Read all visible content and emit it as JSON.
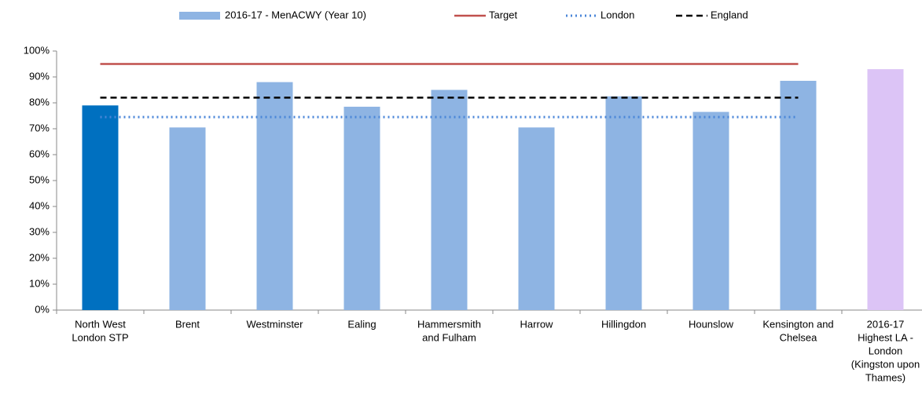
{
  "chart_data": {
    "type": "bar",
    "categories": [
      [
        "North West",
        "London STP"
      ],
      [
        "Brent"
      ],
      [
        "Westminster"
      ],
      [
        "Ealing"
      ],
      [
        "Hammersmith",
        "and Fulham"
      ],
      [
        "Harrow"
      ],
      [
        "Hillingdon"
      ],
      [
        "Hounslow"
      ],
      [
        "Kensington and",
        "Chelsea"
      ],
      [
        "2016-17",
        "Highest LA -",
        "London",
        "(Kingston upon",
        "Thames)"
      ]
    ],
    "series": [
      {
        "name": "2016-17 - MenACWY (Year 10)",
        "type": "bar",
        "color": "#8eb4e3",
        "colors": [
          "#0070c0",
          "#8eb4e3",
          "#8eb4e3",
          "#8eb4e3",
          "#8eb4e3",
          "#8eb4e3",
          "#8eb4e3",
          "#8eb4e3",
          "#8eb4e3",
          "#dcc4f6"
        ],
        "values": [
          79,
          70.5,
          88,
          78.5,
          85,
          70.5,
          82.5,
          76.5,
          88.5,
          93
        ]
      },
      {
        "name": "Target",
        "type": "line",
        "color": "#c0504d",
        "dash": "solid",
        "values": [
          95,
          95,
          95,
          95,
          95,
          95,
          95,
          95,
          95,
          null
        ]
      },
      {
        "name": "London",
        "type": "line",
        "color": "#4a86d8",
        "dash": "dotted",
        "values": [
          74.5,
          74.5,
          74.5,
          74.5,
          74.5,
          74.5,
          74.5,
          74.5,
          74.5,
          null
        ]
      },
      {
        "name": "England",
        "type": "line",
        "color": "#000000",
        "dash": "dashed",
        "values": [
          82,
          82,
          82,
          82,
          82,
          82,
          82,
          82,
          82,
          null
        ]
      }
    ],
    "ylim": [
      0,
      100
    ],
    "yticks": [
      {
        "value": 0,
        "label": "0%"
      },
      {
        "value": 10,
        "label": "10%"
      },
      {
        "value": 20,
        "label": "20%"
      },
      {
        "value": 30,
        "label": "30%"
      },
      {
        "value": 40,
        "label": "40%"
      },
      {
        "value": 50,
        "label": "50%"
      },
      {
        "value": 60,
        "label": "60%"
      },
      {
        "value": 70,
        "label": "70%"
      },
      {
        "value": 80,
        "label": "80%"
      },
      {
        "value": 90,
        "label": "90%"
      },
      {
        "value": 100,
        "label": "100%"
      }
    ],
    "legend": "top"
  }
}
